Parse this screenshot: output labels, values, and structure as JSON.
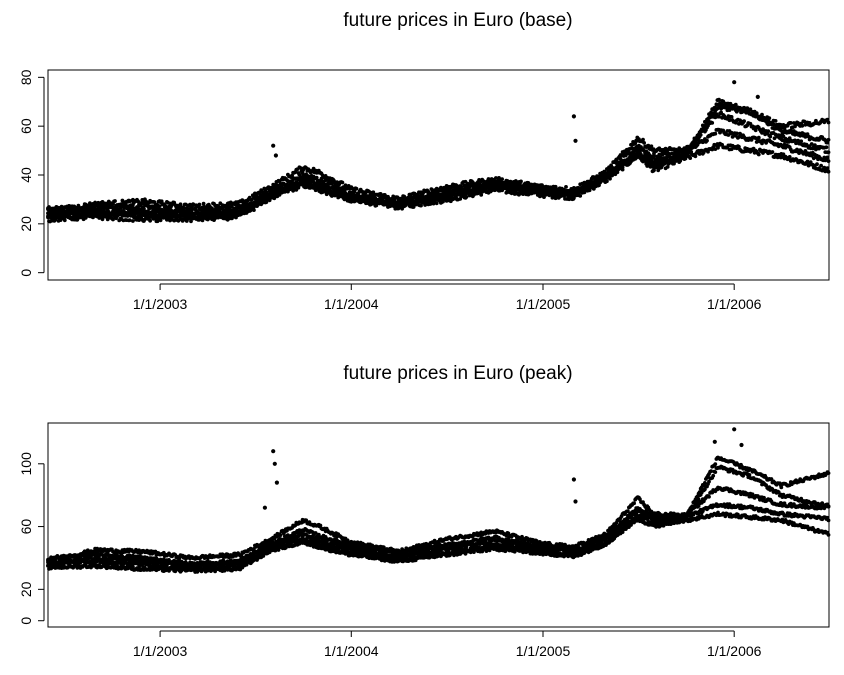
{
  "chart_data": [
    {
      "type": "scatter",
      "title": "future prices in Euro (base)",
      "xlabel": "",
      "ylabel": "",
      "x_ticks": [
        "1/1/2003",
        "1/1/2004",
        "1/1/2005",
        "1/1/2006"
      ],
      "x_tick_values": [
        "2003-01-01",
        "2004-01-01",
        "2005-01-01",
        "2006-01-01"
      ],
      "xlim": [
        "2002-06-01",
        "2006-07-01"
      ],
      "y_ticks": [
        0,
        20,
        40,
        60,
        80
      ],
      "ylim": [
        -3,
        83
      ],
      "grid": false,
      "marker_color": "#000000",
      "series": [
        {
          "name": "",
          "points": [
            [
              "2002-06-01",
              24
            ],
            [
              "2002-09-01",
              25
            ],
            [
              "2002-12-01",
              24
            ],
            [
              "2003-03-01",
              23
            ],
            [
              "2003-06-01",
              24
            ],
            [
              "2003-08-01",
              31
            ],
            [
              "2003-10-01",
              36
            ],
            [
              "2003-11-01",
              34
            ],
            [
              "2004-01-01",
              30
            ],
            [
              "2004-04-01",
              27
            ],
            [
              "2004-07-01",
              30
            ],
            [
              "2004-10-01",
              34
            ],
            [
              "2005-01-01",
              32
            ],
            [
              "2005-03-01",
              31
            ],
            [
              "2005-05-01",
              38
            ],
            [
              "2005-07-01",
              48
            ],
            [
              "2005-08-01",
              42
            ],
            [
              "2005-10-01",
              47
            ],
            [
              "2005-12-01",
              52
            ],
            [
              "2006-02-01",
              50
            ],
            [
              "2006-04-01",
              48
            ],
            [
              "2006-07-01",
              42
            ]
          ]
        },
        {
          "name": "",
          "points": [
            [
              "2002-06-01",
              26
            ],
            [
              "2002-09-01",
              27
            ],
            [
              "2002-12-01",
              27
            ],
            [
              "2003-03-01",
              25
            ],
            [
              "2003-06-01",
              26
            ],
            [
              "2003-08-01",
              33
            ],
            [
              "2003-10-01",
              40
            ],
            [
              "2003-11-01",
              38
            ],
            [
              "2004-01-01",
              32
            ],
            [
              "2004-04-01",
              29
            ],
            [
              "2004-07-01",
              33
            ],
            [
              "2004-10-01",
              37
            ],
            [
              "2005-01-01",
              34
            ],
            [
              "2005-03-01",
              33
            ],
            [
              "2005-05-01",
              40
            ],
            [
              "2005-07-01",
              52
            ],
            [
              "2005-08-01",
              47
            ],
            [
              "2005-10-01",
              49
            ],
            [
              "2005-12-01",
              58
            ],
            [
              "2006-02-01",
              55
            ],
            [
              "2006-04-01",
              52
            ],
            [
              "2006-07-01",
              46
            ]
          ]
        },
        {
          "name": "",
          "points": [
            [
              "2002-06-01",
              25
            ],
            [
              "2002-09-01",
              28
            ],
            [
              "2002-12-01",
              29
            ],
            [
              "2003-03-01",
              27
            ],
            [
              "2003-06-01",
              28
            ],
            [
              "2003-08-01",
              35
            ],
            [
              "2003-10-01",
              43
            ],
            [
              "2003-11-01",
              41
            ],
            [
              "2004-01-01",
              34
            ],
            [
              "2004-04-01",
              30
            ],
            [
              "2004-07-01",
              35
            ],
            [
              "2004-10-01",
              38
            ],
            [
              "2005-01-01",
              35
            ],
            [
              "2005-03-01",
              34
            ],
            [
              "2005-05-01",
              41
            ],
            [
              "2005-07-01",
              55
            ],
            [
              "2005-08-01",
              50
            ],
            [
              "2005-10-01",
              50
            ],
            [
              "2005-12-01",
              65
            ],
            [
              "2006-02-01",
              60
            ],
            [
              "2006-04-01",
              55
            ],
            [
              "2006-07-01",
              50
            ]
          ]
        },
        {
          "name": "",
          "points": [
            [
              "2002-06-01",
              22
            ],
            [
              "2002-09-01",
              23
            ],
            [
              "2002-12-01",
              22
            ],
            [
              "2003-03-01",
              22
            ],
            [
              "2003-06-01",
              23
            ],
            [
              "2003-08-01",
              31
            ],
            [
              "2003-10-01",
              38
            ],
            [
              "2003-11-01",
              36
            ],
            [
              "2004-01-01",
              31
            ],
            [
              "2004-04-01",
              28
            ],
            [
              "2004-07-01",
              32
            ],
            [
              "2004-10-01",
              36
            ],
            [
              "2005-01-01",
              33
            ],
            [
              "2005-03-01",
              32
            ],
            [
              "2005-05-01",
              39
            ],
            [
              "2005-07-01",
              50
            ],
            [
              "2005-08-01",
              44
            ],
            [
              "2005-10-01",
              48
            ],
            [
              "2005-12-01",
              68
            ],
            [
              "2006-02-01",
              66
            ],
            [
              "2006-04-01",
              58
            ],
            [
              "2006-07-01",
              54
            ]
          ]
        },
        {
          "name": "",
          "points": [
            [
              "2002-06-01",
              23
            ],
            [
              "2002-09-01",
              24
            ],
            [
              "2002-12-01",
              25
            ],
            [
              "2003-03-01",
              24
            ],
            [
              "2003-06-01",
              25
            ],
            [
              "2003-08-01",
              32
            ],
            [
              "2003-10-01",
              37
            ],
            [
              "2003-11-01",
              35
            ],
            [
              "2004-01-01",
              30
            ],
            [
              "2004-04-01",
              28
            ],
            [
              "2004-07-01",
              31
            ],
            [
              "2004-10-01",
              35
            ],
            [
              "2005-01-01",
              33
            ],
            [
              "2005-03-01",
              32
            ],
            [
              "2005-05-01",
              39
            ],
            [
              "2005-07-01",
              49
            ],
            [
              "2005-08-01",
              45
            ],
            [
              "2005-10-01",
              48
            ],
            [
              "2005-12-01",
              70
            ],
            [
              "2006-02-01",
              66
            ],
            [
              "2006-04-01",
              60
            ],
            [
              "2006-07-01",
              62
            ]
          ]
        }
      ],
      "spikes": [
        [
          "2003-08-05",
          52
        ],
        [
          "2003-08-10",
          48
        ],
        [
          "2005-03-01",
          64
        ],
        [
          "2005-03-04",
          54
        ],
        [
          "2006-01-01",
          78
        ],
        [
          "2006-02-15",
          72
        ]
      ]
    },
    {
      "type": "scatter",
      "title": "future prices in Euro (peak)",
      "xlabel": "",
      "ylabel": "",
      "x_ticks": [
        "1/1/2003",
        "1/1/2004",
        "1/1/2005",
        "1/1/2006"
      ],
      "x_tick_values": [
        "2003-01-01",
        "2004-01-01",
        "2005-01-01",
        "2006-01-01"
      ],
      "xlim": [
        "2002-06-01",
        "2006-07-01"
      ],
      "y_ticks": [
        0,
        20,
        60,
        100
      ],
      "ylim": [
        -4,
        126
      ],
      "grid": false,
      "marker_color": "#000000",
      "series": [
        {
          "name": "",
          "points": [
            [
              "2002-06-01",
              36
            ],
            [
              "2002-09-01",
              38
            ],
            [
              "2002-12-01",
              36
            ],
            [
              "2003-03-01",
              33
            ],
            [
              "2003-06-01",
              35
            ],
            [
              "2003-08-01",
              46
            ],
            [
              "2003-10-01",
              52
            ],
            [
              "2003-11-01",
              49
            ],
            [
              "2004-01-01",
              44
            ],
            [
              "2004-04-01",
              39
            ],
            [
              "2004-07-01",
              43
            ],
            [
              "2004-10-01",
              48
            ],
            [
              "2005-01-01",
              44
            ],
            [
              "2005-03-01",
              42
            ],
            [
              "2005-05-01",
              50
            ],
            [
              "2005-07-01",
              67
            ],
            [
              "2005-08-01",
              62
            ],
            [
              "2005-10-01",
              64
            ],
            [
              "2005-12-01",
              68
            ],
            [
              "2006-02-01",
              66
            ],
            [
              "2006-04-01",
              64
            ],
            [
              "2006-07-01",
              55
            ]
          ]
        },
        {
          "name": "",
          "points": [
            [
              "2002-06-01",
              40
            ],
            [
              "2002-09-01",
              42
            ],
            [
              "2002-12-01",
              40
            ],
            [
              "2003-03-01",
              36
            ],
            [
              "2003-06-01",
              38
            ],
            [
              "2003-08-01",
              49
            ],
            [
              "2003-10-01",
              58
            ],
            [
              "2003-11-01",
              54
            ],
            [
              "2004-01-01",
              48
            ],
            [
              "2004-04-01",
              43
            ],
            [
              "2004-07-01",
              48
            ],
            [
              "2004-10-01",
              53
            ],
            [
              "2005-01-01",
              47
            ],
            [
              "2005-03-01",
              45
            ],
            [
              "2005-05-01",
              53
            ],
            [
              "2005-07-01",
              72
            ],
            [
              "2005-08-01",
              66
            ],
            [
              "2005-10-01",
              66
            ],
            [
              "2005-12-01",
              74
            ],
            [
              "2006-02-01",
              72
            ],
            [
              "2006-04-01",
              68
            ],
            [
              "2006-07-01",
              65
            ]
          ]
        },
        {
          "name": "",
          "points": [
            [
              "2002-06-01",
              38
            ],
            [
              "2002-09-01",
              45
            ],
            [
              "2002-12-01",
              44
            ],
            [
              "2003-03-01",
              40
            ],
            [
              "2003-06-01",
              42
            ],
            [
              "2003-08-01",
              52
            ],
            [
              "2003-10-01",
              64
            ],
            [
              "2003-11-01",
              60
            ],
            [
              "2004-01-01",
              50
            ],
            [
              "2004-04-01",
              44
            ],
            [
              "2004-07-01",
              52
            ],
            [
              "2004-10-01",
              57
            ],
            [
              "2005-01-01",
              49
            ],
            [
              "2005-03-01",
              47
            ],
            [
              "2005-05-01",
              55
            ],
            [
              "2005-07-01",
              78
            ],
            [
              "2005-08-01",
              68
            ],
            [
              "2005-10-01",
              67
            ],
            [
              "2005-12-01",
              85
            ],
            [
              "2006-02-01",
              80
            ],
            [
              "2006-04-01",
              74
            ],
            [
              "2006-07-01",
              72
            ]
          ]
        },
        {
          "name": "",
          "points": [
            [
              "2002-06-01",
              34
            ],
            [
              "2002-09-01",
              35
            ],
            [
              "2002-12-01",
              33
            ],
            [
              "2003-03-01",
              32
            ],
            [
              "2003-06-01",
              33
            ],
            [
              "2003-08-01",
              45
            ],
            [
              "2003-10-01",
              50
            ],
            [
              "2003-11-01",
              47
            ],
            [
              "2004-01-01",
              42
            ],
            [
              "2004-04-01",
              38
            ],
            [
              "2004-07-01",
              42
            ],
            [
              "2004-10-01",
              46
            ],
            [
              "2005-01-01",
              43
            ],
            [
              "2005-03-01",
              41
            ],
            [
              "2005-05-01",
              49
            ],
            [
              "2005-07-01",
              65
            ],
            [
              "2005-08-01",
              60
            ],
            [
              "2005-10-01",
              65
            ],
            [
              "2005-12-01",
              98
            ],
            [
              "2006-02-01",
              92
            ],
            [
              "2006-04-01",
              80
            ],
            [
              "2006-07-01",
              73
            ]
          ]
        },
        {
          "name": "",
          "points": [
            [
              "2002-06-01",
              37
            ],
            [
              "2002-09-01",
              40
            ],
            [
              "2002-12-01",
              38
            ],
            [
              "2003-03-01",
              35
            ],
            [
              "2003-06-01",
              37
            ],
            [
              "2003-08-01",
              48
            ],
            [
              "2003-10-01",
              55
            ],
            [
              "2003-11-01",
              51
            ],
            [
              "2004-01-01",
              46
            ],
            [
              "2004-04-01",
              41
            ],
            [
              "2004-07-01",
              46
            ],
            [
              "2004-10-01",
              51
            ],
            [
              "2005-01-01",
              46
            ],
            [
              "2005-03-01",
              44
            ],
            [
              "2005-05-01",
              52
            ],
            [
              "2005-07-01",
              70
            ],
            [
              "2005-08-01",
              64
            ],
            [
              "2005-10-01",
              66
            ],
            [
              "2005-12-01",
              104
            ],
            [
              "2006-02-01",
              96
            ],
            [
              "2006-04-01",
              86
            ],
            [
              "2006-07-01",
              94
            ]
          ]
        }
      ],
      "spikes": [
        [
          "2003-08-05",
          108
        ],
        [
          "2003-08-08",
          100
        ],
        [
          "2003-08-12",
          88
        ],
        [
          "2003-07-20",
          72
        ],
        [
          "2005-03-01",
          90
        ],
        [
          "2005-03-04",
          76
        ],
        [
          "2006-01-01",
          122
        ],
        [
          "2006-01-15",
          112
        ],
        [
          "2005-11-25",
          114
        ]
      ]
    }
  ]
}
